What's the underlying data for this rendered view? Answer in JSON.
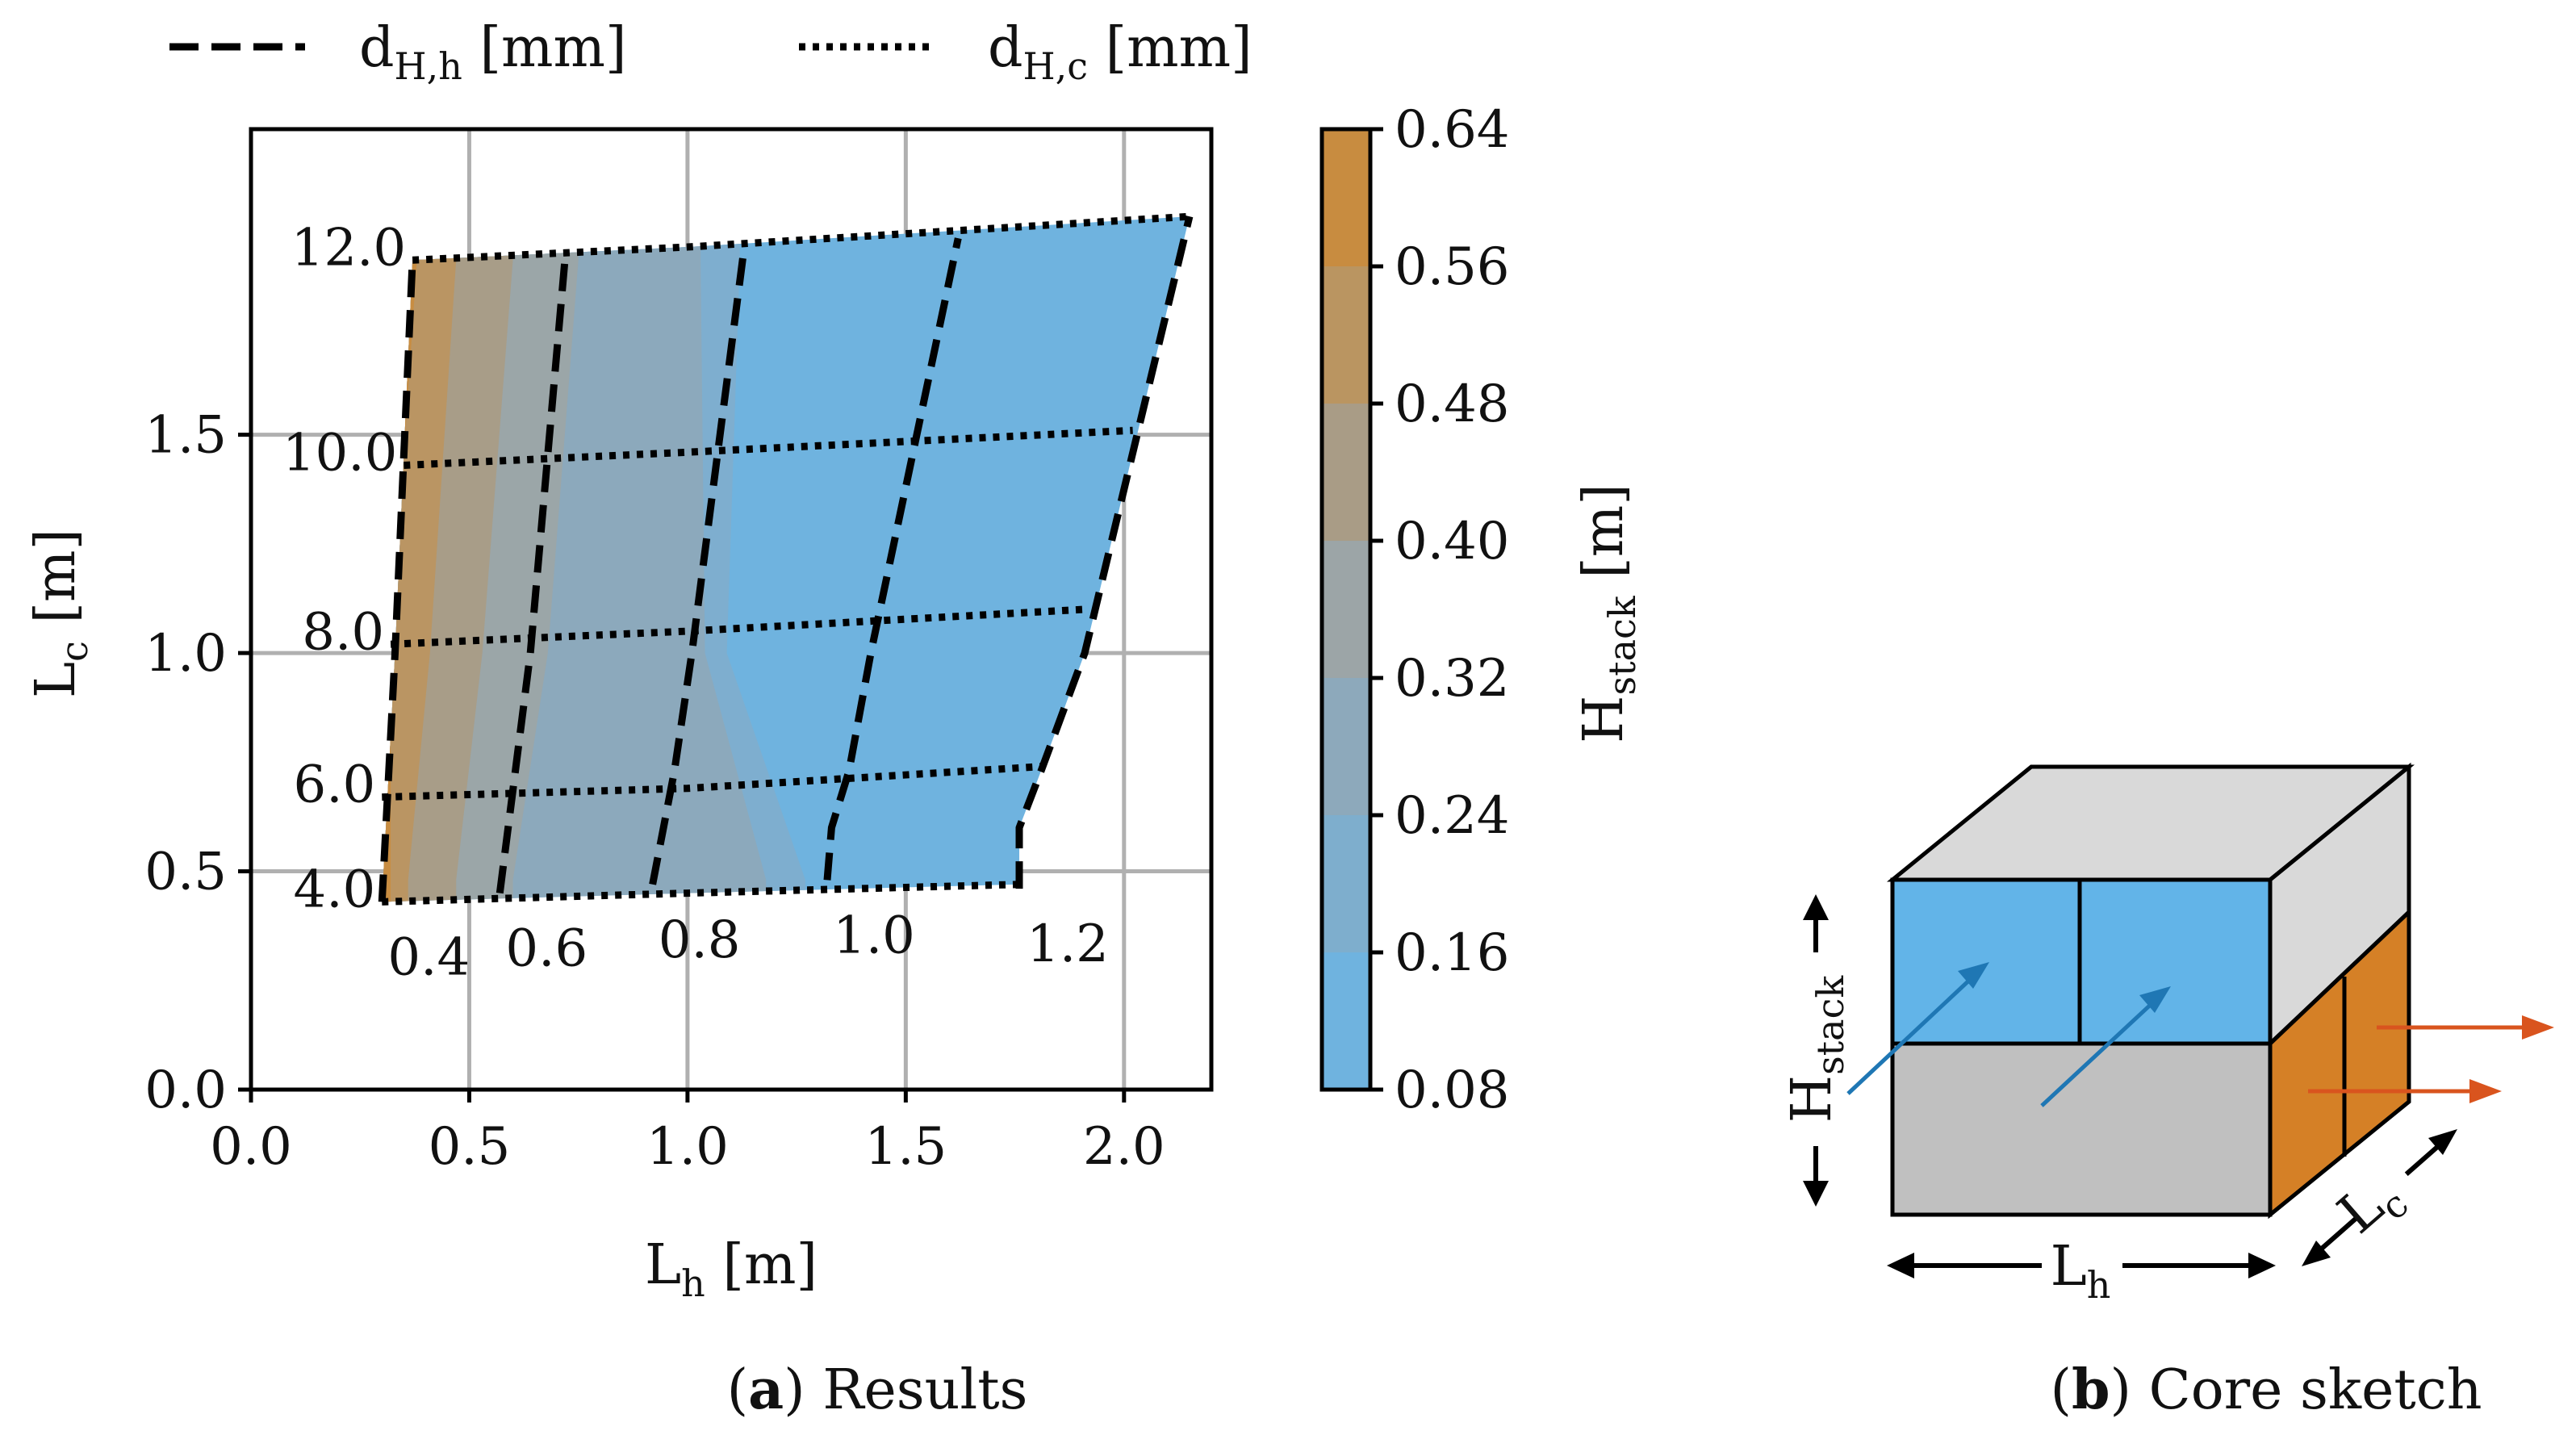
{
  "chart_data": [
    {
      "type": "contour",
      "panel": "a",
      "caption": {
        "letter": "a",
        "text": "Results"
      },
      "xlabel": {
        "main": "L",
        "sub": "h",
        "unit": " [m]"
      },
      "ylabel": {
        "main": "L",
        "sub": "c",
        "unit": " [m]"
      },
      "xlim": [
        0.0,
        2.2
      ],
      "ylim": [
        0.0,
        2.2
      ],
      "xticks": [
        "0.0",
        "0.5",
        "1.0",
        "1.5",
        "2.0"
      ],
      "yticks": [
        "0.0",
        "0.5",
        "1.0",
        "1.5"
      ],
      "grid": true,
      "legend": {
        "position": "top",
        "entries": [
          {
            "style": "dashed",
            "main": "d",
            "sub": "H,h",
            "unit": " [mm]"
          },
          {
            "style": "dotted",
            "main": "d",
            "sub": "H,c",
            "unit": " [mm]"
          }
        ]
      },
      "colorbar": {
        "label_main": "H",
        "label_sub": "stack",
        "label_unit": " [m]",
        "levels": [
          0.08,
          0.16,
          0.24,
          0.32,
          0.4,
          0.48,
          0.56,
          0.64
        ],
        "tick_labels": [
          "0.08",
          "0.16",
          "0.24",
          "0.32",
          "0.40",
          "0.48",
          "0.56",
          "0.64"
        ],
        "colors": [
          "#6fb3df",
          "#7eaecd",
          "#8da9bb",
          "#9ca5a7",
          "#a99c86",
          "#ba9561",
          "#c88c40",
          "#d2842a"
        ]
      },
      "fill_bands": [
        {
          "level": 0.64,
          "Lh_right": [
            0.38,
            0.32,
            0.32
          ]
        },
        {
          "level": 0.56,
          "Lh_right": [
            0.47,
            0.41,
            0.36
          ]
        },
        {
          "level": 0.48,
          "Lh_right": [
            0.6,
            0.53,
            0.47
          ]
        },
        {
          "level": 0.4,
          "Lh_right": [
            0.75,
            0.68,
            0.6
          ]
        },
        {
          "level": 0.32,
          "Lh_right": [
            1.03,
            1.04,
            1.18
          ]
        },
        {
          "level": 0.24,
          "Lh_right": [
            1.12,
            1.09,
            1.27
          ]
        }
      ],
      "fill_band_Lc": [
        1.9,
        1.0,
        0.48
      ],
      "series": [
        {
          "name": "d_H,h",
          "style": "dashed",
          "value_label": "0.4",
          "x": [
            0.3,
            0.33,
            0.37
          ],
          "y": [
            0.43,
            1.0,
            1.9
          ]
        },
        {
          "name": "d_H,h",
          "style": "dashed",
          "value_label": "0.6",
          "x": [
            0.57,
            0.64,
            0.72
          ],
          "y": [
            0.45,
            1.0,
            1.91
          ]
        },
        {
          "name": "d_H,h",
          "style": "dashed",
          "value_label": "0.8",
          "x": [
            0.92,
            0.97,
            1.01,
            1.13
          ],
          "y": [
            0.47,
            0.73,
            1.0,
            1.93
          ]
        },
        {
          "name": "d_H,h",
          "style": "dashed",
          "value_label": "1.0",
          "x": [
            1.32,
            1.33,
            1.37,
            1.42,
            1.62
          ],
          "y": [
            0.48,
            0.6,
            0.73,
            1.0,
            1.95
          ]
        },
        {
          "name": "d_H,h",
          "style": "dashed",
          "value_label": "1.2",
          "x": [
            1.76,
            1.76,
            1.81,
            1.91,
            2.15
          ],
          "y": [
            0.46,
            0.6,
            0.73,
            1.0,
            2.0
          ]
        },
        {
          "name": "d_H,c",
          "style": "dotted",
          "value_label": "4.0",
          "x": [
            0.3,
            1.0,
            1.76
          ],
          "y": [
            0.43,
            0.45,
            0.47
          ]
        },
        {
          "name": "d_H,c",
          "style": "dotted",
          "value_label": "6.0",
          "x": [
            0.3,
            1.0,
            1.81
          ],
          "y": [
            0.67,
            0.69,
            0.74
          ]
        },
        {
          "name": "d_H,c",
          "style": "dotted",
          "value_label": "8.0",
          "x": [
            0.32,
            1.0,
            1.91
          ],
          "y": [
            1.02,
            1.05,
            1.1
          ]
        },
        {
          "name": "d_H,c",
          "style": "dotted",
          "value_label": "10.0",
          "x": [
            0.35,
            1.0,
            2.02
          ],
          "y": [
            1.43,
            1.46,
            1.51
          ]
        },
        {
          "name": "d_H,c",
          "style": "dotted",
          "value_label": "12.0",
          "x": [
            0.37,
            1.0,
            2.15
          ],
          "y": [
            1.9,
            1.93,
            2.0
          ]
        }
      ]
    },
    {
      "type": "diagram",
      "panel": "b",
      "caption": {
        "letter": "b",
        "text": "Core sketch"
      },
      "dimension_labels": [
        {
          "axis": "height",
          "main": "H",
          "sub": "stack"
        },
        {
          "axis": "width",
          "main": "L",
          "sub": "h"
        },
        {
          "axis": "depth",
          "main": "L",
          "sub": "c"
        }
      ],
      "colors": {
        "hot_face": "#62b4e8",
        "cold_face": "#d58026",
        "top": "#d9d9d9",
        "body": "#c0c0c0",
        "hot_arrow": "#1f77b4",
        "cold_arrow": "#d9541e"
      }
    }
  ]
}
